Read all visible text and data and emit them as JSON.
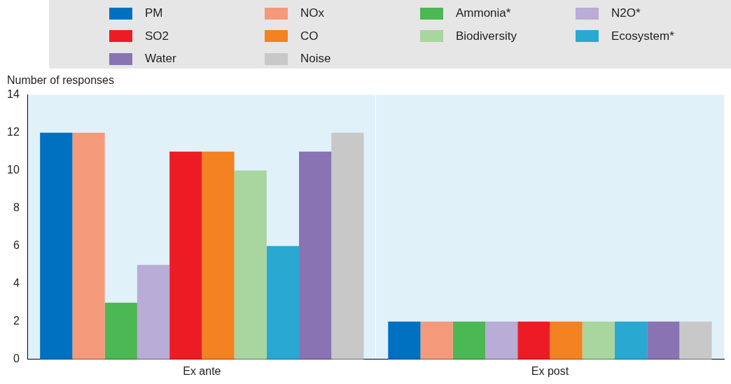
{
  "chart_data": {
    "type": "bar",
    "ylabel": "Number of responses",
    "categories": [
      "Ex ante",
      "Ex post"
    ],
    "series": [
      {
        "name": "PM",
        "color": "#0070c0",
        "values": [
          12,
          2
        ]
      },
      {
        "name": "NOx",
        "color": "#f5997b",
        "values": [
          12,
          2
        ]
      },
      {
        "name": "Ammonia*",
        "color": "#4cb853",
        "values": [
          3,
          2
        ]
      },
      {
        "name": "N2O*",
        "color": "#b9acd6",
        "values": [
          5,
          2
        ]
      },
      {
        "name": "SO2",
        "color": "#ed1c24",
        "values": [
          11,
          2
        ]
      },
      {
        "name": "CO",
        "color": "#f58220",
        "values": [
          11,
          2
        ]
      },
      {
        "name": "Biodiversity",
        "color": "#a9d59e",
        "values": [
          10,
          2
        ]
      },
      {
        "name": "Ecosystem*",
        "color": "#29a9d1",
        "values": [
          6,
          2
        ]
      },
      {
        "name": "Water",
        "color": "#8a73b3",
        "values": [
          11,
          2
        ]
      },
      {
        "name": "Noise",
        "color": "#c8c8c8",
        "values": [
          12,
          2
        ]
      }
    ],
    "ylim": [
      0,
      14
    ],
    "yticks": [
      0,
      2,
      4,
      6,
      8,
      10,
      12,
      14
    ],
    "grid": "x",
    "legend": "top"
  }
}
